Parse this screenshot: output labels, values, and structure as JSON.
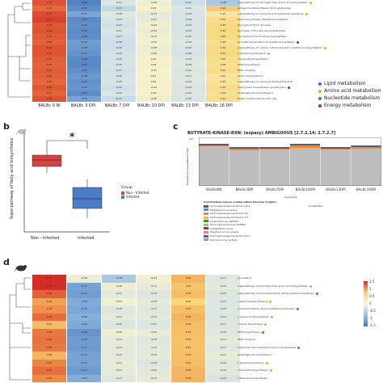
{
  "panel_a": {
    "columns": [
      "BALBc 0 NI",
      "BALBc 3 DPI",
      "BALBc 7 DPI",
      "BALBc 10 DPI",
      "BALBc 13 DPI",
      "BALBc 16 DPI"
    ],
    "rows": [
      {
        "label": "superpathway of branched chain amino acid biosynthesis",
        "dot": "amino",
        "vals": [
          "1.03",
          "-0.89",
          "-0.21",
          "-0.06",
          "-0.31",
          "-0.48"
        ]
      },
      {
        "label": "tetrapyrrole biosynthesis I (from glutamate)",
        "dot": "",
        "vals": [
          "0.94",
          "-0.84",
          "-0.37",
          "0.02",
          "-0.21",
          "0.46"
        ]
      },
      {
        "label": "superpathway of coenzyme A biosynthesis I (bacteria)",
        "dot": "amino",
        "vals": [
          "1.07",
          "-0.71",
          "-0.18",
          "-0.13",
          "-0.24",
          "0.19"
        ]
      },
      {
        "label": "flavin biosynthesis I (bacteria and plants)",
        "dot": "",
        "vals": [
          "1.11",
          "-0.85",
          "-0.23",
          "-0.11",
          "-0.24",
          "0.32"
        ]
      },
      {
        "label": "glycolysis III (from glucose)",
        "dot": "",
        "vals": [
          "1.02",
          "-0.83",
          "-0.27",
          "-0.04",
          "-0.23",
          "0.35"
        ]
      },
      {
        "label": "glycolysis I (from glucose 6-phosphate)",
        "dot": "",
        "vals": [
          "1.04",
          "-0.85",
          "-0.21",
          "-0.10",
          "-0.23",
          "0.35"
        ]
      },
      {
        "label": "glycolysis II (from fructose 6-phosphate)",
        "dot": "",
        "vals": [
          "1.00",
          "-0.84",
          "-0.27",
          "-0.03",
          "-0.22",
          "0.36"
        ]
      },
      {
        "label": "pyruvate fermentation to acetate and lactate II",
        "dot": "energy",
        "vals": [
          "0.98",
          "-0.76",
          "-0.29",
          "-0.03",
          "-0.18",
          "0.28"
        ]
      },
      {
        "label": "superpathway of L-lysine, L-threonine and L-methionine biosynthesis I",
        "dot": "amino",
        "vals": [
          "1.04",
          "-0.78",
          "-0.30",
          "-0.08",
          "-0.22",
          "0.34"
        ]
      },
      {
        "label": "L-lysine biosynthesis VI",
        "dot": "amino",
        "vals": [
          "1.03",
          "-0.81",
          "-0.25",
          "-0.06",
          "-0.26",
          "0.35"
        ]
      },
      {
        "label": "chorismate biosynthesis I",
        "dot": "",
        "vals": [
          "0.99",
          "-0.86",
          "-0.25",
          "0.01",
          "-0.19",
          "0.30"
        ]
      },
      {
        "label": "UMP biosynthesis I",
        "dot": "",
        "vals": [
          "0.97",
          "-0.86",
          "-0.25",
          "0.04",
          "-0.18",
          "0.28"
        ]
      },
      {
        "label": "tRNA charging",
        "dot": "",
        "vals": [
          "1.00",
          "-0.83",
          "-0.27",
          "-0.01",
          "-0.21",
          "0.32"
        ]
      },
      {
        "label": "starch degradation V",
        "dot": "",
        "vals": [
          "0.98",
          "-0.78",
          "-0.26",
          "0.01",
          "-0.17",
          "0.22"
        ]
      },
      {
        "label": "superpathway of coenzyme A biosynthesis III",
        "dot": "",
        "vals": [
          "0.95",
          "-0.82",
          "-0.23",
          "0.04",
          "-0.19",
          "0.25"
        ]
      },
      {
        "label": "coenzyme A biosynthesis I (prokaryotic)",
        "dot": "energy",
        "vals": [
          "1.02",
          "-0.79",
          "-0.31",
          "-0.02",
          "-0.22",
          "0.32"
        ]
      },
      {
        "label": "peptidoglycan biosynthesis V",
        "dot": "",
        "vals": [
          "0.97",
          "-0.84",
          "-0.22",
          "0.02",
          "-0.19",
          "0.26"
        ]
      },
      {
        "label": "folate transformations II (E. coli)",
        "dot": "",
        "vals": [
          "1.04",
          "-0.73",
          "-0.33",
          "-0.06",
          "-0.23",
          "0.31"
        ]
      }
    ],
    "legend": [
      {
        "label": "Lipid metabolism",
        "color": "#3a6fc4"
      },
      {
        "label": "Amino acid metabolism",
        "color": "#e8b020"
      },
      {
        "label": "Nucleotide metabolism",
        "color": "#2e9e3e"
      },
      {
        "label": "Energy metabolism",
        "color": "#c0282b"
      }
    ]
  },
  "panel_b": {
    "label": "b",
    "ylabel": "Superpathway of fatty acid biosynthesis",
    "significance": "*",
    "legend_title": "Group",
    "legend_items": [
      {
        "label": "Non - Infected",
        "color": "#d94040"
      },
      {
        "label": "Infected",
        "color": "#4a7cc7"
      }
    ],
    "xlabels": [
      "Non - Infected",
      "Infected"
    ]
  },
  "panel_c": {
    "label": "c",
    "title": "BUTYRATE-KINASE-RXN: (expasy) AMBIGUOUS [2.7.2.14; 2.7.2.7]",
    "ylabel": "Abundance (copies/Read units)",
    "ytick": "10⁰",
    "xlabels": [
      "BALBc0NI",
      "BALBc3DPI",
      "BALBc7DPI",
      "BALBc10DPI",
      "BALBc13DPI",
      "BALBc16DPI"
    ],
    "xlabel": "6 samples",
    "contrib_title": "Contributions (linear scaling within total bar height):",
    "contrib_left": [
      {
        "label": "Lachnospiraceae bacterium 28-4",
        "color": "#3a5fb0"
      },
      {
        "label": "Staphylococcus lentus",
        "color": "#5a8fd6"
      },
      {
        "label": "Lachnospiraceae bacterium A4",
        "color": "#f08a20"
      },
      {
        "label": "Lachnospiraceae bacterium 3-1",
        "color": "#f0b060"
      },
      {
        "label": "Clostridium sp. ASF502",
        "color": "#2e9e3e"
      },
      {
        "label": "Firmicutes bacterium ASF500",
        "color": "#8ac96a"
      },
      {
        "label": "Acetatifactor muris",
        "color": "#c0282b"
      },
      {
        "label": "Staphylococcus xylosus",
        "color": "#e88080"
      },
      {
        "label": "Lachnospiraceae bacterium 10-1",
        "color": "#7a4ea0"
      },
      {
        "label": "Ruminococcus lactaris",
        "color": "#a68ac8"
      }
    ],
    "unclassified": "unclassified"
  },
  "panel_d": {
    "label": "d",
    "rows": [
      {
        "label": "glucose6 IV",
        "dot": "",
        "vals": [
          "1.34",
          "-0.08",
          "-0.48",
          "-0.04",
          "0.58",
          "-0.17"
        ]
      },
      {
        "label": "superpathway of branched chain amino acid biosynthesis",
        "dot": "amino",
        "vals": [
          "1.34",
          "-0.73",
          "-0.06",
          "-0.11",
          "0.50",
          "-0.15"
        ]
      },
      {
        "label": "superpathway of 5-aminoimidazole ribonucleotide biosynthesis",
        "dot": "nuc",
        "vals": [
          "0.98",
          "-0.75",
          "-0.15",
          "-0.19",
          "0.54",
          "-0.20"
        ]
      },
      {
        "label": "L-arginine biosynthesis II",
        "dot": "amino",
        "vals": [
          "0.68",
          "-0.68",
          "-0.03",
          "-0.15",
          "0.40",
          "-0.21"
        ]
      },
      {
        "label": "5-aminoimidazole ribonucleotide biosynthesis I",
        "dot": "nuc",
        "vals": [
          "0.78",
          "-0.70",
          "-0.18",
          "-0.17",
          "0.53",
          "-0.19"
        ]
      },
      {
        "label": "L-isoleucine biosynthesis I",
        "dot": "amino",
        "vals": [
          "0.93",
          "-0.66",
          "-0.13",
          "-0.15",
          "0.58",
          "-0.21"
        ]
      },
      {
        "label": "L-valine biosynthesis",
        "dot": "amino",
        "vals": [
          "0.54",
          "-0.69",
          "-0.20",
          "-0.21",
          "0.54",
          "-0.17"
        ]
      },
      {
        "label": "UMP biosynthesis I",
        "dot": "nuc",
        "vals": [
          "0.88",
          "-0.80",
          "-0.06",
          "-0.09",
          "0.53",
          "-0.18"
        ]
      },
      {
        "label": "tRNA charging",
        "dot": "",
        "vals": [
          "0.90",
          "-0.76",
          "-0.13",
          "-0.18",
          "0.52",
          "-0.12"
        ]
      },
      {
        "label": "adenosine ribonucleotides de novo biosynthesis",
        "dot": "nuc",
        "vals": [
          "0.88",
          "-0.77",
          "-0.14",
          "-0.15",
          "0.51",
          "-0.17"
        ]
      },
      {
        "label": "peptidoglycan biosynthesis I",
        "dot": "",
        "vals": [
          "0.58",
          "-0.73",
          "-0.15",
          "-0.15",
          "0.53",
          "-0.11"
        ]
      },
      {
        "label": "L-lysine biosynthesis I",
        "dot": "amino",
        "vals": [
          "0.83",
          "-0.73",
          "-0.11",
          "-0.20",
          "0.54",
          "-0.16"
        ]
      },
      {
        "label": "chorismate biosynthesis I",
        "dot": "amino",
        "vals": [
          "0.92",
          "-0.77",
          "-0.13",
          "-0.16",
          "0.58",
          "-0.16"
        ]
      },
      {
        "label": "L-threonine biosynthesis",
        "dot": "",
        "vals": [
          "0.81",
          "-0.67",
          "-0.17",
          "-0.12",
          "0.58",
          "-0.23"
        ]
      }
    ],
    "scale_ticks": [
      "1.5",
      "1",
      "0.5",
      "0",
      "-0.5",
      "-1",
      "-1.5"
    ]
  }
}
